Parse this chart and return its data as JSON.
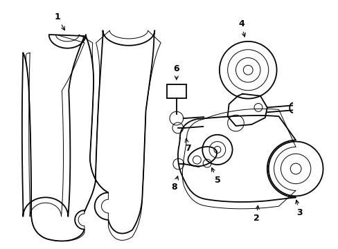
{
  "background_color": "#ffffff",
  "line_color": "#000000",
  "lw": 1.3,
  "tlw": 0.7,
  "fs": 9,
  "figsize": [
    4.89,
    3.6
  ],
  "dpi": 100
}
